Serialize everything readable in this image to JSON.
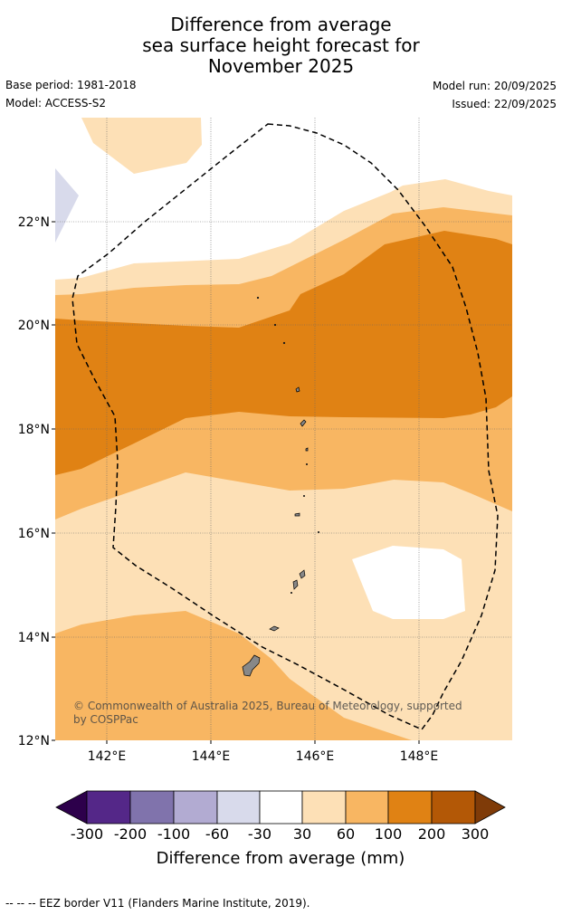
{
  "title": {
    "line1": "Difference from average",
    "line2": "sea surface height forecast for",
    "line3": "November 2025"
  },
  "meta": {
    "base_period": "Base period: 1981-2018",
    "model": "Model: ACCESS-S2",
    "model_run": "Model run: 20/09/2025",
    "issued": "Issued: 22/09/2025"
  },
  "map": {
    "lat_labels": [
      "22°N",
      "20°N",
      "18°N",
      "16°N",
      "14°N",
      "12°N"
    ],
    "lon_labels": [
      "142°E",
      "144°E",
      "146°E",
      "148°E"
    ],
    "copyright_line1": "© Commonwealth of Australia 2025, Bureau of Meteorology, supported",
    "copyright_line2": "by COSPPac"
  },
  "colorbar": {
    "label": "Difference from average (mm)",
    "ticks": [
      "-300",
      "-200",
      "-100",
      "-60",
      "-30",
      "30",
      "60",
      "100",
      "200",
      "300"
    ],
    "colors": {
      "extend_low": "#2d004b",
      "c1": "#542788",
      "c2": "#8073ac",
      "c3": "#b2abd2",
      "c4": "#d8daeb",
      "c5": "#ffffff",
      "c6": "#fde0b6",
      "c7": "#f8b662",
      "c8": "#e08214",
      "c9": "#b35806",
      "extend_high": "#7f3b08"
    }
  },
  "footnote": "--  --  -- EEZ border V11 (Flanders Marine Institute, 2019)."
}
